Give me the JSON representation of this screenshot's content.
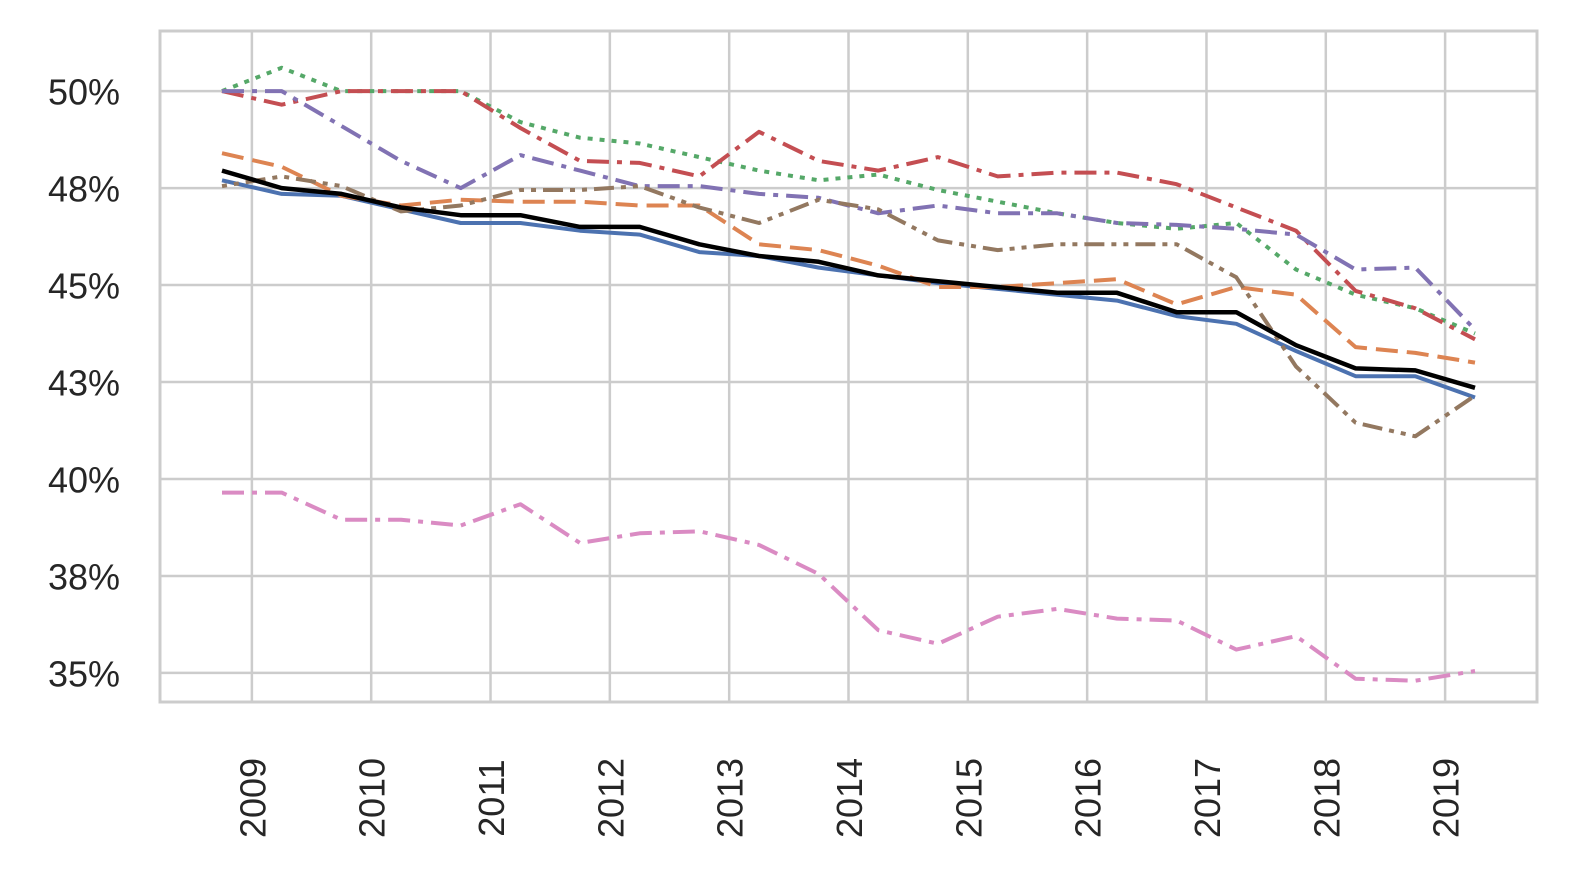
{
  "chart_data": {
    "type": "line",
    "title": "",
    "xlabel": "",
    "ylabel": "",
    "xlim": [
      2008.23,
      2019.77
    ],
    "ylim": [
      34.25,
      51.55
    ],
    "grid": true,
    "legend": "none",
    "x_ticks": [
      {
        "value": 2009,
        "label": "2009"
      },
      {
        "value": 2010,
        "label": "2010"
      },
      {
        "value": 2011,
        "label": "2011"
      },
      {
        "value": 2012,
        "label": "2012"
      },
      {
        "value": 2013,
        "label": "2013"
      },
      {
        "value": 2014,
        "label": "2014"
      },
      {
        "value": 2015,
        "label": "2015"
      },
      {
        "value": 2016,
        "label": "2016"
      },
      {
        "value": 2017,
        "label": "2017"
      },
      {
        "value": 2018,
        "label": "2018"
      },
      {
        "value": 2019,
        "label": "2019"
      }
    ],
    "y_ticks": [
      {
        "value": 35,
        "label": "35%"
      },
      {
        "value": 37.5,
        "label": "38%"
      },
      {
        "value": 40,
        "label": "40%"
      },
      {
        "value": 42.5,
        "label": "43%"
      },
      {
        "value": 45,
        "label": "45%"
      },
      {
        "value": 47.5,
        "label": "48%"
      },
      {
        "value": 50,
        "label": "50%"
      }
    ],
    "x": [
      2008.75,
      2009.25,
      2009.75,
      2010.25,
      2010.75,
      2011.25,
      2011.75,
      2012.25,
      2012.75,
      2013.25,
      2013.75,
      2014.25,
      2014.75,
      2015.25,
      2015.75,
      2016.25,
      2016.75,
      2017.25,
      2017.75,
      2018.25,
      2018.75,
      2019.25
    ],
    "series": [
      {
        "color": "#4c72b0",
        "dash": "solid",
        "width": 4,
        "values": [
          47.7,
          47.35,
          47.3,
          46.95,
          46.6,
          46.6,
          46.4,
          46.3,
          45.85,
          45.75,
          45.45,
          45.25,
          45.05,
          44.9,
          44.75,
          44.6,
          44.2,
          44.0,
          43.3,
          42.65,
          42.65,
          42.1
        ]
      },
      {
        "color": "#dd8452",
        "dash": "dashed",
        "width": 4,
        "values": [
          48.4,
          48.05,
          47.3,
          47.05,
          47.2,
          47.15,
          47.15,
          47.05,
          47.05,
          46.05,
          45.9,
          45.5,
          44.95,
          44.95,
          45.05,
          45.15,
          44.5,
          44.95,
          44.75,
          43.4,
          43.25,
          43.0
        ]
      },
      {
        "color": "#55a868",
        "dash": "dotted",
        "width": 4,
        "values": [
          50.0,
          50.6,
          50.0,
          50.0,
          50.0,
          49.2,
          48.8,
          48.65,
          48.3,
          47.95,
          47.7,
          47.85,
          47.45,
          47.15,
          46.85,
          46.6,
          46.45,
          46.6,
          45.4,
          44.75,
          44.4,
          43.75
        ]
      },
      {
        "color": "#c44e52",
        "dash": "dashdot",
        "width": 4,
        "values": [
          50.0,
          49.65,
          50.0,
          50.0,
          50.0,
          49.05,
          48.2,
          48.15,
          47.8,
          48.95,
          48.2,
          47.95,
          48.3,
          47.8,
          47.9,
          47.9,
          47.6,
          47.0,
          46.4,
          44.85,
          44.4,
          43.6
        ]
      },
      {
        "color": "#8172b3",
        "dash": "dashdot",
        "width": 4,
        "values": [
          50.0,
          50.0,
          49.1,
          48.2,
          47.5,
          48.35,
          47.95,
          47.55,
          47.55,
          47.35,
          47.25,
          46.85,
          47.05,
          46.85,
          46.85,
          46.6,
          46.55,
          46.45,
          46.3,
          45.4,
          45.45,
          43.85
        ]
      },
      {
        "color": "#937860",
        "dash": "dotted-dash",
        "width": 4,
        "values": [
          47.55,
          47.8,
          47.55,
          46.9,
          47.05,
          47.45,
          47.45,
          47.55,
          47.0,
          46.6,
          47.2,
          46.95,
          46.15,
          45.9,
          46.05,
          46.05,
          46.05,
          45.2,
          42.9,
          41.45,
          41.1,
          42.15
        ]
      },
      {
        "color": "#da8bc3",
        "dash": "dashdot",
        "width": 4,
        "values": [
          39.65,
          39.65,
          38.95,
          38.95,
          38.8,
          39.35,
          38.35,
          38.6,
          38.65,
          38.3,
          37.55,
          36.1,
          35.75,
          36.45,
          36.65,
          36.4,
          36.35,
          35.6,
          35.95,
          34.85,
          34.8,
          35.05
        ]
      },
      {
        "color": "#000000",
        "dash": "solid",
        "width": 4.5,
        "values": [
          47.95,
          47.5,
          47.35,
          47.0,
          46.8,
          46.8,
          46.5,
          46.5,
          46.05,
          45.75,
          45.6,
          45.25,
          45.1,
          44.95,
          44.8,
          44.8,
          44.3,
          44.3,
          43.45,
          42.85,
          42.8,
          42.35
        ]
      }
    ]
  }
}
